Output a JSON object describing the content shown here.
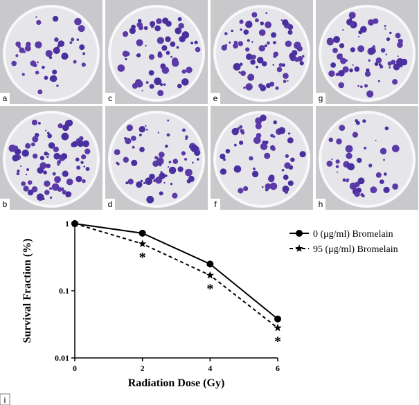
{
  "panels": [
    "a",
    "c",
    "e",
    "g",
    "b",
    "d",
    "f",
    "h"
  ],
  "chart_panel": "i",
  "chart_data": {
    "type": "line",
    "xlabel": "Radiation Dose (Gy)",
    "ylabel": "Survival Fraction (%)",
    "x": [
      0,
      2,
      4,
      6
    ],
    "series": [
      {
        "name": "0 (μg/ml) Bromelain",
        "color": "#000000",
        "dash": false,
        "marker": "circle",
        "values": [
          1,
          0.72,
          0.25,
          0.038
        ]
      },
      {
        "name": "95 (μg/ml) Bromelain",
        "color": "#000000",
        "dash": true,
        "marker": "star",
        "values": [
          1,
          0.5,
          0.17,
          0.028
        ]
      }
    ],
    "annotations": [
      {
        "x": 2,
        "text": "*"
      },
      {
        "x": 4,
        "text": "*"
      },
      {
        "x": 6,
        "text": "*"
      }
    ],
    "xlim": [
      0,
      6
    ],
    "xticks": [
      0,
      2,
      4,
      6
    ],
    "ylim": [
      0.01,
      1
    ],
    "yticks": [
      0.01,
      0.1,
      1
    ],
    "log_y": true,
    "legend": "top-right"
  }
}
